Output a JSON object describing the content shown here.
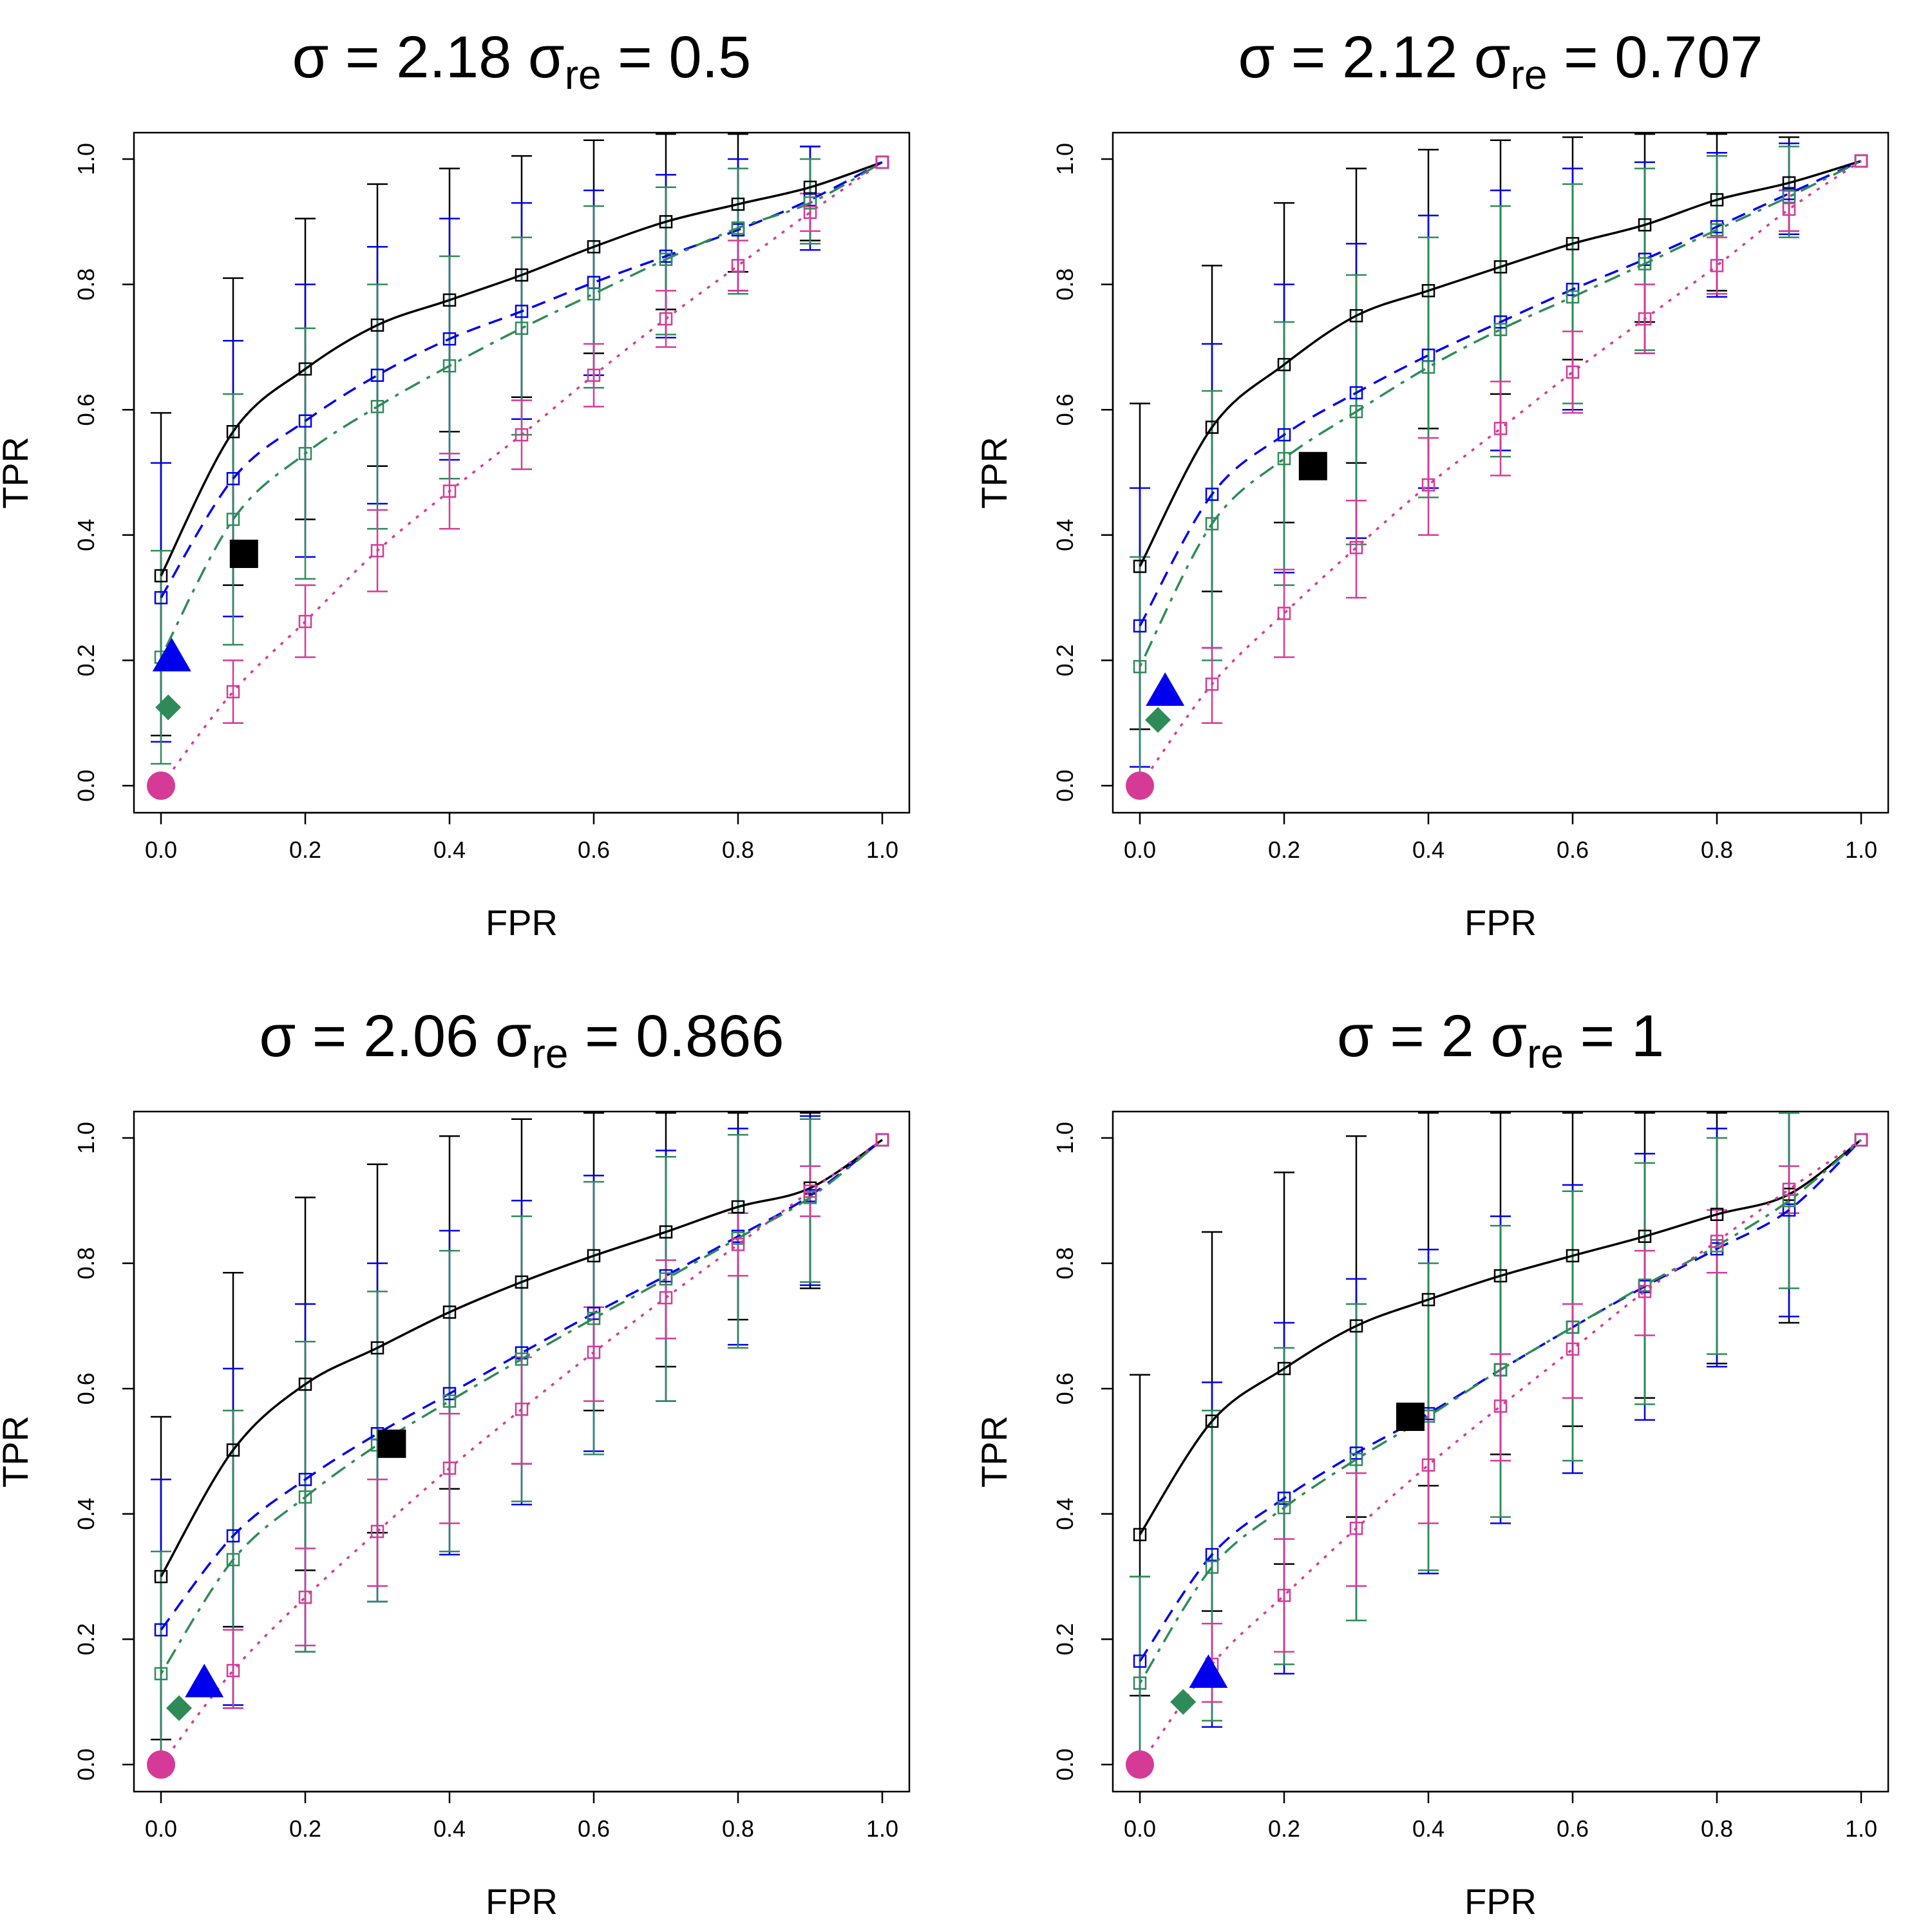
{
  "figure": {
    "description_type": "2x2 grid of ROC curves",
    "colors": {
      "black": "#000000",
      "blue": "#0000EE",
      "green": "#2E8B57",
      "magenta": "#D63A97"
    }
  },
  "chart_data": [
    {
      "type": "line",
      "title_parts": {
        "sigma_symbol": "σ",
        "equals": "=",
        "sigma_value": "2.18",
        "sub": "re",
        "re_value": "0.5"
      },
      "xlabel": "FPR",
      "ylabel": "TPR",
      "xlim": [
        0,
        1
      ],
      "ylim": [
        0,
        1
      ],
      "xticks": [
        "0.0",
        "0.2",
        "0.4",
        "0.6",
        "0.8",
        "1.0"
      ],
      "yticks": [
        "0.0",
        "0.2",
        "0.4",
        "0.6",
        "0.8",
        "1.0"
      ],
      "x": [
        0,
        0.1,
        0.2,
        0.3,
        0.4,
        0.5,
        0.6,
        0.7,
        0.8,
        0.9,
        1.0
      ],
      "series": [
        {
          "name": "black",
          "style": "solid",
          "color": "#000000",
          "values": [
            0.335,
            0.565,
            0.665,
            0.735,
            0.775,
            0.815,
            0.86,
            0.9,
            0.928,
            0.955,
            0.995
          ],
          "lower": [
            0.08,
            0.32,
            0.425,
            0.51,
            0.565,
            0.62,
            0.69,
            0.76,
            0.82,
            0.87,
            0.995
          ],
          "upper": [
            0.595,
            0.81,
            0.905,
            0.96,
            0.985,
            1.005,
            1.03,
            1.04,
            1.04,
            1.02,
            0.995
          ]
        },
        {
          "name": "blue",
          "style": "dashed",
          "color": "#0000EE",
          "values": [
            0.3,
            0.49,
            0.582,
            0.655,
            0.713,
            0.757,
            0.803,
            0.845,
            0.887,
            0.935,
            0.995
          ],
          "lower": [
            0.07,
            0.27,
            0.365,
            0.45,
            0.52,
            0.585,
            0.655,
            0.715,
            0.79,
            0.855,
            0.995
          ],
          "upper": [
            0.515,
            0.71,
            0.8,
            0.86,
            0.905,
            0.93,
            0.95,
            0.975,
            1.0,
            1.02,
            0.995
          ]
        },
        {
          "name": "green",
          "style": "dotdash",
          "color": "#2E8B57",
          "values": [
            0.205,
            0.425,
            0.53,
            0.605,
            0.67,
            0.73,
            0.785,
            0.84,
            0.89,
            0.93,
            0.995
          ],
          "lower": [
            0.035,
            0.225,
            0.33,
            0.41,
            0.49,
            0.56,
            0.635,
            0.72,
            0.785,
            0.865,
            0.995
          ],
          "upper": [
            0.375,
            0.625,
            0.73,
            0.8,
            0.845,
            0.875,
            0.925,
            0.955,
            0.985,
            1.0,
            0.995
          ]
        },
        {
          "name": "magenta",
          "style": "dotted",
          "color": "#D63A97",
          "values": [
            0.0,
            0.15,
            0.262,
            0.375,
            0.47,
            0.56,
            0.655,
            0.745,
            0.83,
            0.915,
            0.995
          ],
          "lower": [
            0.0,
            0.1,
            0.205,
            0.31,
            0.41,
            0.505,
            0.605,
            0.7,
            0.79,
            0.885,
            0.995
          ],
          "upper": [
            0.0,
            0.2,
            0.32,
            0.44,
            0.53,
            0.615,
            0.705,
            0.79,
            0.87,
            0.945,
            0.995
          ]
        }
      ],
      "markers": [
        {
          "shape": "square",
          "color": "#000000",
          "x": 0.115,
          "y": 0.37
        },
        {
          "shape": "triangle",
          "color": "#0000EE",
          "x": 0.015,
          "y": 0.205
        },
        {
          "shape": "diamond",
          "color": "#2E8B57",
          "x": 0.01,
          "y": 0.125
        },
        {
          "shape": "circle",
          "color": "#D63A97",
          "x": 0.0,
          "y": 0.0
        }
      ]
    },
    {
      "type": "line",
      "title_parts": {
        "sigma_symbol": "σ",
        "equals": "=",
        "sigma_value": "2.12",
        "sub": "re",
        "re_value": "0.707"
      },
      "xlabel": "FPR",
      "ylabel": "TPR",
      "xlim": [
        0,
        1
      ],
      "ylim": [
        0,
        1
      ],
      "xticks": [
        "0.0",
        "0.2",
        "0.4",
        "0.6",
        "0.8",
        "1.0"
      ],
      "yticks": [
        "0.0",
        "0.2",
        "0.4",
        "0.6",
        "0.8",
        "1.0"
      ],
      "x": [
        0,
        0.1,
        0.2,
        0.3,
        0.4,
        0.5,
        0.6,
        0.7,
        0.8,
        0.9,
        1.0
      ],
      "series": [
        {
          "name": "black",
          "style": "solid",
          "color": "#000000",
          "values": [
            0.35,
            0.572,
            0.672,
            0.75,
            0.79,
            0.828,
            0.865,
            0.895,
            0.935,
            0.962,
            0.997
          ],
          "lower": [
            0.09,
            0.31,
            0.42,
            0.515,
            0.57,
            0.625,
            0.68,
            0.74,
            0.79,
            0.885,
            0.997
          ],
          "upper": [
            0.61,
            0.83,
            0.93,
            0.985,
            1.015,
            1.03,
            1.035,
            1.04,
            1.04,
            1.035,
            0.997
          ]
        },
        {
          "name": "blue",
          "style": "dashed",
          "color": "#0000EE",
          "values": [
            0.255,
            0.465,
            0.56,
            0.627,
            0.687,
            0.74,
            0.792,
            0.84,
            0.892,
            0.945,
            0.997
          ],
          "lower": [
            0.03,
            0.22,
            0.34,
            0.395,
            0.475,
            0.535,
            0.6,
            0.69,
            0.78,
            0.88,
            0.997
          ],
          "upper": [
            0.475,
            0.705,
            0.8,
            0.865,
            0.91,
            0.95,
            0.985,
            0.995,
            1.01,
            1.025,
            0.997
          ]
        },
        {
          "name": "green",
          "style": "dotdash",
          "color": "#2E8B57",
          "values": [
            0.19,
            0.418,
            0.522,
            0.597,
            0.668,
            0.728,
            0.78,
            0.833,
            0.887,
            0.94,
            0.997
          ],
          "lower": [
            0.0,
            0.2,
            0.32,
            0.385,
            0.46,
            0.525,
            0.61,
            0.695,
            0.785,
            0.875,
            0.997
          ],
          "upper": [
            0.365,
            0.63,
            0.74,
            0.815,
            0.875,
            0.925,
            0.96,
            0.985,
            1.005,
            1.02,
            0.997
          ]
        },
        {
          "name": "magenta",
          "style": "dotted",
          "color": "#D63A97",
          "values": [
            0.0,
            0.162,
            0.275,
            0.38,
            0.48,
            0.57,
            0.66,
            0.745,
            0.83,
            0.92,
            0.997
          ],
          "lower": [
            0.0,
            0.1,
            0.205,
            0.3,
            0.4,
            0.495,
            0.595,
            0.69,
            0.785,
            0.885,
            0.997
          ],
          "upper": [
            0.0,
            0.22,
            0.345,
            0.455,
            0.555,
            0.645,
            0.725,
            0.8,
            0.875,
            0.95,
            0.997
          ]
        }
      ],
      "markers": [
        {
          "shape": "square",
          "color": "#000000",
          "x": 0.24,
          "y": 0.51
        },
        {
          "shape": "triangle",
          "color": "#0000EE",
          "x": 0.035,
          "y": 0.15
        },
        {
          "shape": "diamond",
          "color": "#2E8B57",
          "x": 0.025,
          "y": 0.105
        },
        {
          "shape": "circle",
          "color": "#D63A97",
          "x": 0.0,
          "y": 0.0
        }
      ]
    },
    {
      "type": "line",
      "title_parts": {
        "sigma_symbol": "σ",
        "equals": "=",
        "sigma_value": "2.06",
        "sub": "re",
        "re_value": "0.866"
      },
      "xlabel": "FPR",
      "ylabel": "TPR",
      "xlim": [
        0,
        1
      ],
      "ylim": [
        0,
        1
      ],
      "xticks": [
        "0.0",
        "0.2",
        "0.4",
        "0.6",
        "0.8",
        "1.0"
      ],
      "yticks": [
        "0.0",
        "0.2",
        "0.4",
        "0.6",
        "0.8",
        "1.0"
      ],
      "x": [
        0,
        0.1,
        0.2,
        0.3,
        0.4,
        0.5,
        0.6,
        0.7,
        0.8,
        0.9,
        1.0
      ],
      "series": [
        {
          "name": "black",
          "style": "solid",
          "color": "#000000",
          "values": [
            0.3,
            0.502,
            0.607,
            0.665,
            0.722,
            0.77,
            0.812,
            0.85,
            0.89,
            0.92,
            0.997
          ],
          "lower": [
            0.04,
            0.22,
            0.31,
            0.37,
            0.44,
            0.48,
            0.565,
            0.635,
            0.71,
            0.76,
            0.997
          ],
          "upper": [
            0.555,
            0.785,
            0.905,
            0.958,
            1.003,
            1.03,
            1.04,
            1.04,
            1.04,
            1.04,
            0.997
          ]
        },
        {
          "name": "blue",
          "style": "dashed",
          "color": "#0000EE",
          "values": [
            0.215,
            0.365,
            0.455,
            0.528,
            0.592,
            0.657,
            0.72,
            0.78,
            0.843,
            0.908,
            0.997
          ],
          "lower": [
            0.0,
            0.095,
            0.18,
            0.26,
            0.335,
            0.415,
            0.5,
            0.58,
            0.67,
            0.765,
            0.997
          ],
          "upper": [
            0.455,
            0.632,
            0.735,
            0.8,
            0.852,
            0.9,
            0.94,
            0.98,
            1.015,
            1.035,
            0.997
          ]
        },
        {
          "name": "green",
          "style": "dotdash",
          "color": "#2E8B57",
          "values": [
            0.145,
            0.327,
            0.427,
            0.51,
            0.58,
            0.647,
            0.712,
            0.775,
            0.84,
            0.905,
            0.997
          ],
          "lower": [
            0.0,
            0.09,
            0.18,
            0.26,
            0.34,
            0.42,
            0.495,
            0.58,
            0.665,
            0.77,
            0.997
          ],
          "upper": [
            0.34,
            0.565,
            0.675,
            0.755,
            0.82,
            0.875,
            0.93,
            0.97,
            1.005,
            1.03,
            0.997
          ]
        },
        {
          "name": "magenta",
          "style": "dotted",
          "color": "#D63A97",
          "values": [
            0.0,
            0.15,
            0.267,
            0.372,
            0.473,
            0.567,
            0.658,
            0.745,
            0.83,
            0.915,
            0.997
          ],
          "lower": [
            0.0,
            0.09,
            0.19,
            0.285,
            0.385,
            0.48,
            0.58,
            0.68,
            0.78,
            0.875,
            0.997
          ],
          "upper": [
            0.0,
            0.215,
            0.345,
            0.455,
            0.56,
            0.65,
            0.73,
            0.805,
            0.88,
            0.955,
            0.997
          ]
        }
      ],
      "markers": [
        {
          "shape": "square",
          "color": "#000000",
          "x": 0.32,
          "y": 0.512
        },
        {
          "shape": "triangle",
          "color": "#0000EE",
          "x": 0.06,
          "y": 0.13
        },
        {
          "shape": "diamond",
          "color": "#2E8B57",
          "x": 0.025,
          "y": 0.09
        },
        {
          "shape": "circle",
          "color": "#D63A97",
          "x": 0.0,
          "y": 0.0
        }
      ]
    },
    {
      "type": "line",
      "title_parts": {
        "sigma_symbol": "σ",
        "equals": "=",
        "sigma_value": "2",
        "sub": "re",
        "re_value": "1"
      },
      "xlabel": "FPR",
      "ylabel": "TPR",
      "xlim": [
        0,
        1
      ],
      "ylim": [
        0,
        1
      ],
      "xticks": [
        "0.0",
        "0.2",
        "0.4",
        "0.6",
        "0.8",
        "1.0"
      ],
      "yticks": [
        "0.0",
        "0.2",
        "0.4",
        "0.6",
        "0.8",
        "1.0"
      ],
      "x": [
        0,
        0.1,
        0.2,
        0.3,
        0.4,
        0.5,
        0.6,
        0.7,
        0.8,
        0.9,
        1.0
      ],
      "series": [
        {
          "name": "black",
          "style": "solid",
          "color": "#000000",
          "values": [
            0.367,
            0.548,
            0.632,
            0.7,
            0.742,
            0.78,
            0.812,
            0.843,
            0.878,
            0.91,
            0.997
          ],
          "lower": [
            0.11,
            0.245,
            0.32,
            0.395,
            0.445,
            0.495,
            0.54,
            0.585,
            0.64,
            0.705,
            0.997
          ],
          "upper": [
            0.622,
            0.85,
            0.945,
            1.003,
            1.04,
            1.04,
            1.04,
            1.04,
            1.04,
            1.04,
            0.997
          ]
        },
        {
          "name": "blue",
          "style": "dashed",
          "color": "#0000EE",
          "values": [
            0.165,
            0.335,
            0.425,
            0.497,
            0.56,
            0.63,
            0.698,
            0.763,
            0.823,
            0.885,
            0.997
          ],
          "lower": [
            0.0,
            0.06,
            0.145,
            0.23,
            0.305,
            0.385,
            0.465,
            0.55,
            0.635,
            0.715,
            0.997
          ],
          "upper": [
            0.3,
            0.61,
            0.705,
            0.775,
            0.822,
            0.875,
            0.925,
            0.975,
            1.015,
            1.04,
            0.997
          ]
        },
        {
          "name": "green",
          "style": "dotdash",
          "color": "#2E8B57",
          "values": [
            0.13,
            0.315,
            0.41,
            0.487,
            0.556,
            0.63,
            0.698,
            0.765,
            0.828,
            0.9,
            0.997
          ],
          "lower": [
            0.0,
            0.07,
            0.16,
            0.23,
            0.31,
            0.395,
            0.485,
            0.575,
            0.655,
            0.76,
            0.997
          ],
          "upper": [
            0.3,
            0.565,
            0.665,
            0.735,
            0.8,
            0.86,
            0.915,
            0.96,
            1.0,
            1.04,
            0.997
          ]
        },
        {
          "name": "magenta",
          "style": "dotted",
          "color": "#D63A97",
          "values": [
            0.0,
            0.16,
            0.27,
            0.377,
            0.478,
            0.572,
            0.663,
            0.755,
            0.835,
            0.918,
            0.997
          ],
          "lower": [
            0.0,
            0.1,
            0.18,
            0.285,
            0.385,
            0.485,
            0.585,
            0.685,
            0.785,
            0.88,
            0.997
          ],
          "upper": [
            0.0,
            0.225,
            0.36,
            0.465,
            0.565,
            0.655,
            0.735,
            0.82,
            0.885,
            0.955,
            0.997
          ]
        }
      ],
      "markers": [
        {
          "shape": "square",
          "color": "#000000",
          "x": 0.375,
          "y": 0.555
        },
        {
          "shape": "triangle",
          "color": "#0000EE",
          "x": 0.095,
          "y": 0.145
        },
        {
          "shape": "diamond",
          "color": "#2E8B57",
          "x": 0.06,
          "y": 0.1
        },
        {
          "shape": "circle",
          "color": "#D63A97",
          "x": 0.0,
          "y": 0.0
        }
      ]
    }
  ]
}
